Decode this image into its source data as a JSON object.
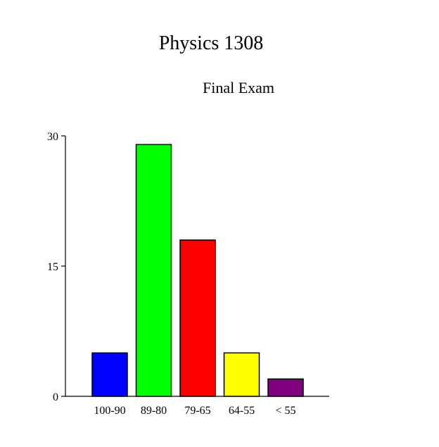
{
  "chart_data": {
    "type": "bar",
    "title": "Physics 1308",
    "subtitle": "Final Exam",
    "xlabel": "",
    "ylabel": "",
    "categories": [
      "100-90",
      "89-80",
      "79-65",
      "64-55",
      "< 55"
    ],
    "values": [
      5,
      29,
      18,
      5,
      2
    ],
    "colors": [
      "#0000ff",
      "#00ff00",
      "#ff0000",
      "#ffff00",
      "#800080"
    ],
    "ylim": [
      0,
      30
    ],
    "yticks": [
      0,
      15,
      30
    ],
    "grid": false,
    "legend": "none"
  }
}
